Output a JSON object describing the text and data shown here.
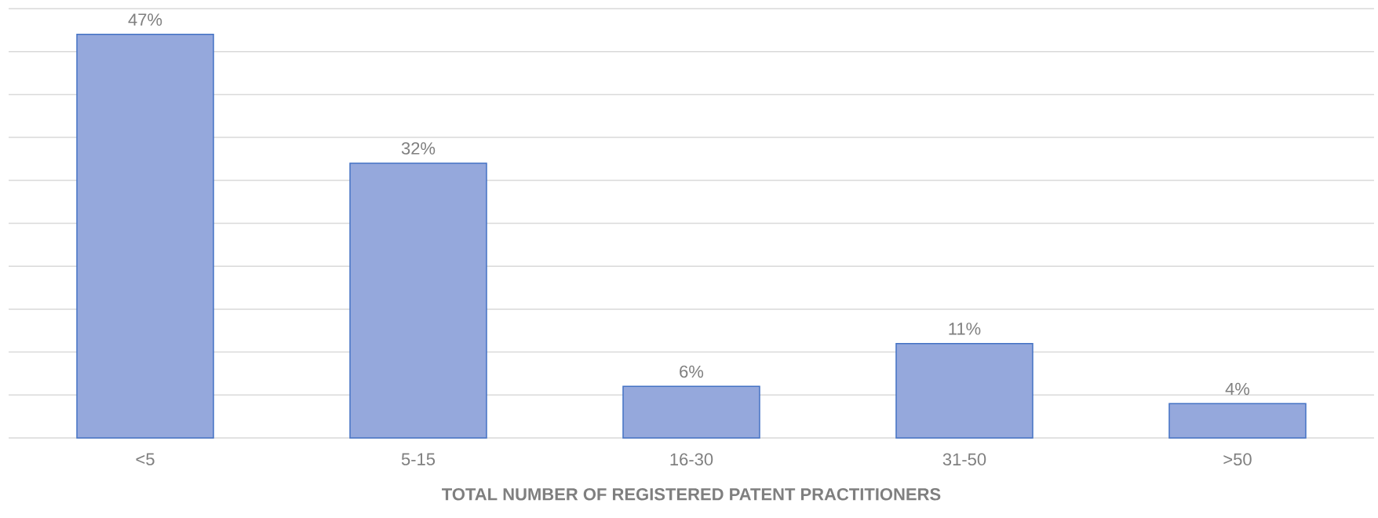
{
  "chart_data": {
    "type": "bar",
    "xlabel": "TOTAL NUMBER OF REGISTERED PATENT PRACTITIONERS",
    "categories": [
      "<5",
      "5-15",
      "16-30",
      "31-50",
      ">50"
    ],
    "values": [
      47,
      32,
      6,
      11,
      4
    ],
    "value_labels": [
      "47%",
      "32%",
      "6%",
      "11%",
      "4%"
    ],
    "color": "#95a8dc",
    "ylim": [
      0,
      50
    ],
    "yticks": [
      {
        "value": 0,
        "label": null
      },
      {
        "value": 5,
        "label": null
      },
      {
        "value": 10,
        "label": null
      },
      {
        "value": 15,
        "label": null
      },
      {
        "value": 20,
        "label": null
      },
      {
        "value": 25,
        "label": null
      },
      {
        "value": 30,
        "label": null
      },
      {
        "value": 35,
        "label": null
      },
      {
        "value": 40,
        "label": null
      },
      {
        "value": 45,
        "label": null
      },
      {
        "value": 50,
        "label": null
      }
    ],
    "tick_labels": "x",
    "grid": "y"
  }
}
